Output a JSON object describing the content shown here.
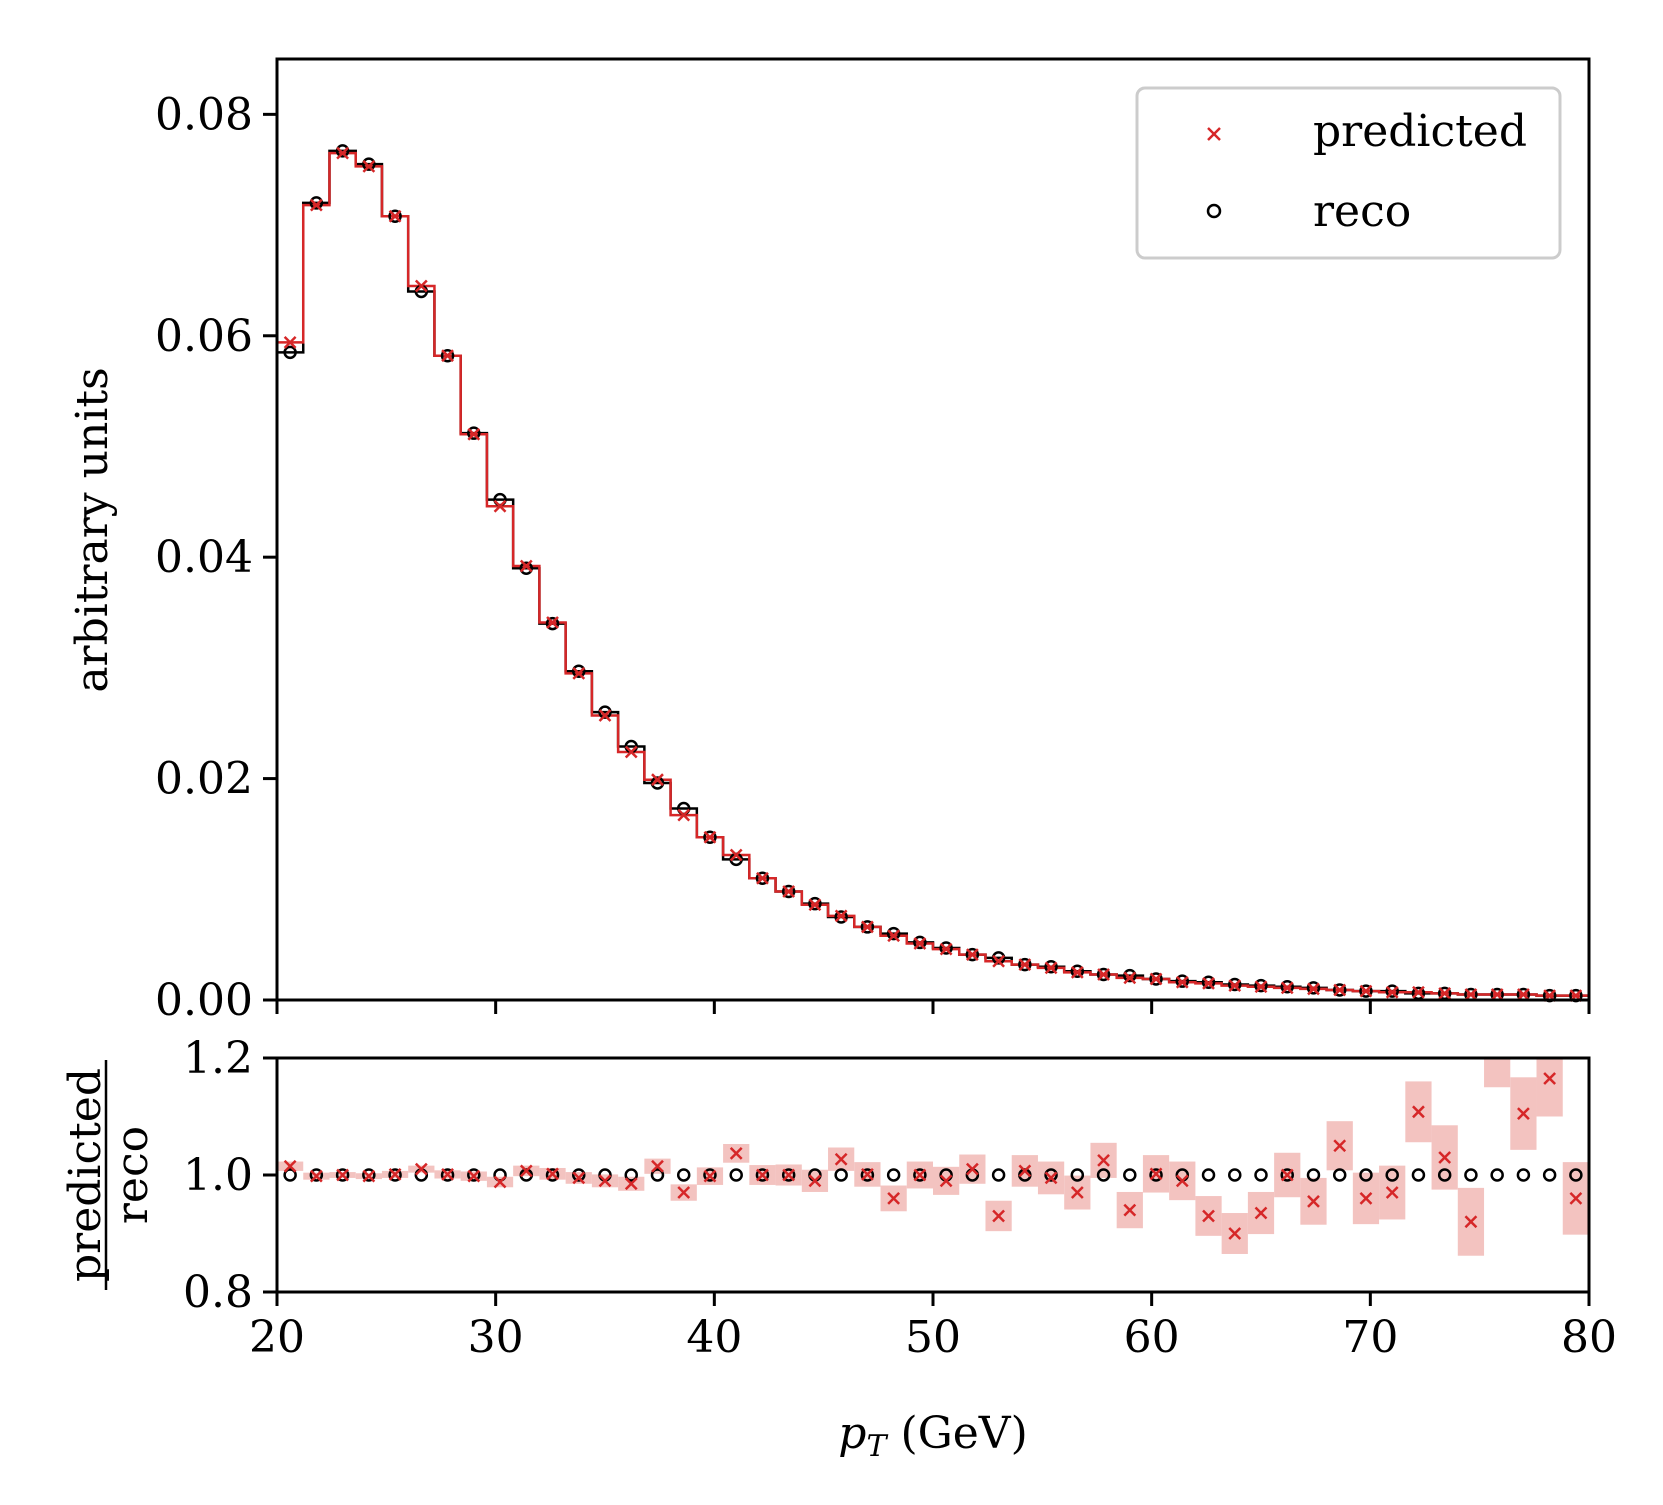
{
  "chart_data": [
    {
      "type": "line",
      "panel": "main",
      "ylabel": "arbitrary units",
      "xlim": [
        20,
        80
      ],
      "ylim": [
        0.0,
        0.085
      ],
      "yticks": [
        "0.00",
        "0.02",
        "0.04",
        "0.06",
        "0.08"
      ],
      "yticks_values": [
        0.0,
        0.02,
        0.04,
        0.06,
        0.08
      ],
      "xticks_values": [
        20,
        30,
        40,
        50,
        60,
        70,
        80
      ],
      "bin_width": 1.2,
      "x": [
        20.6,
        21.8,
        23.0,
        24.2,
        25.4,
        26.6,
        27.8,
        29.0,
        30.2,
        31.4,
        32.6,
        33.8,
        35.0,
        36.2,
        37.4,
        38.6,
        39.8,
        41.0,
        42.2,
        43.4,
        44.6,
        45.8,
        47.0,
        48.2,
        49.4,
        50.6,
        51.8,
        53.0,
        54.2,
        55.4,
        56.6,
        57.8,
        59.0,
        60.2,
        61.4,
        62.6,
        63.8,
        65.0,
        66.2,
        67.4,
        68.6,
        69.8,
        71.0,
        72.2,
        73.4,
        74.6,
        75.8,
        77.0,
        78.2,
        79.4
      ],
      "series": [
        {
          "name": "predicted",
          "color": "#d62728",
          "marker": "x",
          "values": [
            0.0594,
            0.0718,
            0.0765,
            0.0753,
            0.0708,
            0.0645,
            0.0582,
            0.0511,
            0.0446,
            0.0392,
            0.0341,
            0.0295,
            0.0257,
            0.0224,
            0.0199,
            0.0167,
            0.0147,
            0.0131,
            0.011,
            0.0098,
            0.0086,
            0.0076,
            0.0066,
            0.0058,
            0.0051,
            0.0046,
            0.0041,
            0.0035,
            0.0032,
            0.0029,
            0.0025,
            0.0023,
            0.002,
            0.0019,
            0.0016,
            0.0015,
            0.0013,
            0.0012,
            0.0011,
            0.001,
            0.0009,
            0.0008,
            0.0007,
            0.0007,
            0.0006,
            0.0005,
            0.0005,
            0.0005,
            0.0004,
            0.0004
          ]
        },
        {
          "name": "reco",
          "color": "#000000",
          "marker": "o",
          "values": [
            0.0585,
            0.072,
            0.0767,
            0.0755,
            0.0708,
            0.064,
            0.0582,
            0.0512,
            0.0452,
            0.039,
            0.034,
            0.0297,
            0.026,
            0.0229,
            0.0196,
            0.0173,
            0.0147,
            0.0127,
            0.011,
            0.0098,
            0.0087,
            0.0075,
            0.0066,
            0.006,
            0.0052,
            0.0047,
            0.0041,
            0.0038,
            0.0032,
            0.003,
            0.0026,
            0.0023,
            0.0022,
            0.0019,
            0.0017,
            0.0016,
            0.0014,
            0.0013,
            0.0012,
            0.0011,
            0.0009,
            0.0008,
            0.0008,
            0.0006,
            0.0006,
            0.0005,
            0.0005,
            0.0005,
            0.0004,
            0.0004
          ]
        }
      ],
      "legend": {
        "position": "top-right",
        "entries": [
          "predicted",
          "reco"
        ]
      }
    },
    {
      "type": "scatter",
      "panel": "ratio",
      "xlabel_var": "p",
      "xlabel_sub": "T",
      "xlabel_unit": " (GeV)",
      "ylabel_num": "predicted",
      "ylabel_den": "reco",
      "xlim": [
        20,
        80
      ],
      "ylim": [
        0.8,
        1.2
      ],
      "xticks": [
        "20",
        "30",
        "40",
        "50",
        "60",
        "70",
        "80"
      ],
      "xticks_values": [
        20,
        30,
        40,
        50,
        60,
        70,
        80
      ],
      "yticks": [
        "0.8",
        "1.0",
        "1.2"
      ],
      "yticks_values": [
        0.8,
        1.0,
        1.2
      ],
      "x": [
        20.6,
        21.8,
        23.0,
        24.2,
        25.4,
        26.6,
        27.8,
        29.0,
        30.2,
        31.4,
        32.6,
        33.8,
        35.0,
        36.2,
        37.4,
        38.6,
        39.8,
        41.0,
        42.2,
        43.4,
        44.6,
        45.8,
        47.0,
        48.2,
        49.4,
        50.6,
        51.8,
        53.0,
        54.2,
        55.4,
        56.6,
        57.8,
        59.0,
        60.2,
        61.4,
        62.6,
        63.8,
        65.0,
        66.2,
        67.4,
        68.6,
        69.8,
        71.0,
        72.2,
        73.4,
        74.6,
        75.8,
        77.0,
        78.2,
        79.4
      ],
      "ratio": [
        1.015,
        0.998,
        1.0,
        0.998,
        1.001,
        1.01,
        1.001,
        0.998,
        0.988,
        1.007,
        1.002,
        0.995,
        0.99,
        0.985,
        1.015,
        0.97,
        0.998,
        1.037,
        1.0,
        1.0,
        0.99,
        1.027,
        1.001,
        0.96,
        1.0,
        0.99,
        1.01,
        0.93,
        1.007,
        0.995,
        0.97,
        1.025,
        0.94,
        1.002,
        0.99,
        0.93,
        0.9,
        0.935,
        1.0,
        0.955,
        1.05,
        0.96,
        0.97,
        1.108,
        1.03,
        0.92,
        1.21,
        1.105,
        1.165,
        0.96
      ],
      "ratio_err": [
        0.008,
        0.006,
        0.005,
        0.005,
        0.006,
        0.006,
        0.007,
        0.008,
        0.009,
        0.009,
        0.01,
        0.01,
        0.011,
        0.012,
        0.013,
        0.014,
        0.015,
        0.016,
        0.017,
        0.018,
        0.019,
        0.02,
        0.021,
        0.022,
        0.023,
        0.024,
        0.025,
        0.026,
        0.027,
        0.028,
        0.029,
        0.03,
        0.031,
        0.032,
        0.033,
        0.034,
        0.035,
        0.036,
        0.038,
        0.04,
        0.042,
        0.044,
        0.046,
        0.052,
        0.055,
        0.058,
        0.06,
        0.062,
        0.065,
        0.062
      ],
      "reco_ratio": 1.0,
      "band_color": "#f3c3c0"
    }
  ]
}
